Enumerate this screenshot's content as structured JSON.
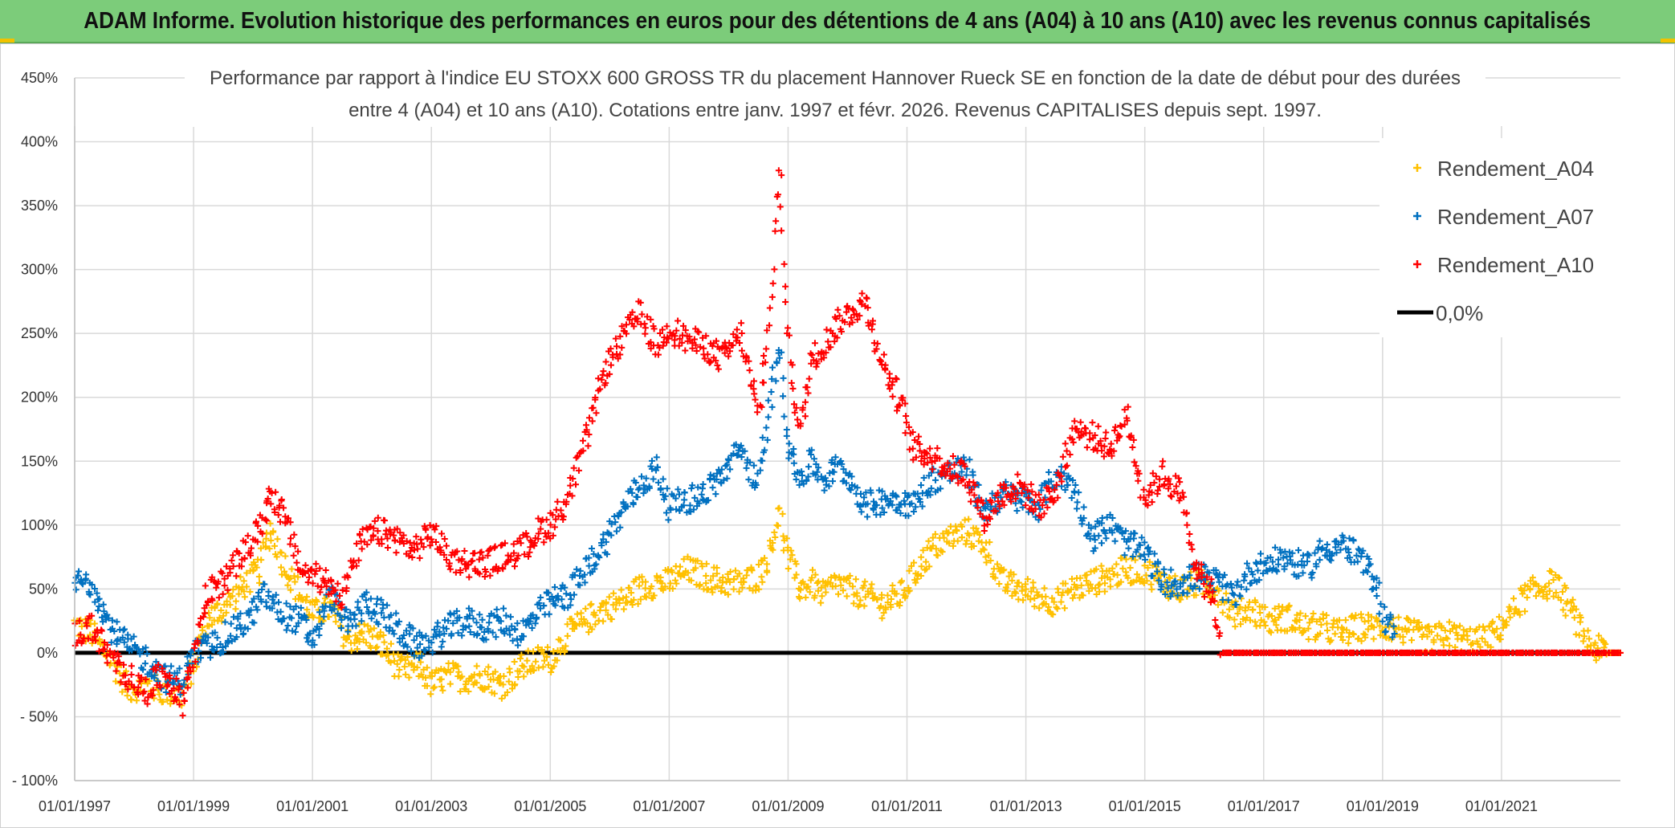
{
  "banner": {
    "title": "ADAM Informe. Evolution historique des performances en euros pour des détentions de 4 ans (A04) à 10 ans (A10) avec les revenus connus capitalisés"
  },
  "colors": {
    "banner_bg": "#7ccc7a",
    "A04": "#ffc000",
    "A07": "#0070c0",
    "A10": "#ff0000",
    "zero_line": "#000000",
    "grid": "#d9d9d9"
  },
  "chart_data": {
    "type": "scatter",
    "title_lines": [
      "Performance par rapport à l'indice EU STOXX 600 GROSS TR  du placement Hannover Rueck SE en fonction de la date de début pour des durées",
      "entre 4 (A04) et 10 ans (A10). Cotations entre janv. 1997 et févr. 2026. Revenus CAPITALISES depuis sept. 1997."
    ],
    "x_unit": "year",
    "xlim": [
      1997.0,
      2023.0
    ],
    "x_ticks": [
      {
        "value": 1997,
        "label": "01/01/1997"
      },
      {
        "value": 1999,
        "label": "01/01/1999"
      },
      {
        "value": 2001,
        "label": "01/01/2001"
      },
      {
        "value": 2003,
        "label": "01/01/2003"
      },
      {
        "value": 2005,
        "label": "01/01/2005"
      },
      {
        "value": 2007,
        "label": "01/01/2007"
      },
      {
        "value": 2009,
        "label": "01/01/2009"
      },
      {
        "value": 2011,
        "label": "01/01/2011"
      },
      {
        "value": 2013,
        "label": "01/01/2013"
      },
      {
        "value": 2015,
        "label": "01/01/2015"
      },
      {
        "value": 2017,
        "label": "01/01/2017"
      },
      {
        "value": 2019,
        "label": "01/01/2019"
      },
      {
        "value": 2021,
        "label": "01/01/2021"
      }
    ],
    "ylim": [
      -100,
      450
    ],
    "y_ticks": [
      {
        "value": 450,
        "label": "450%"
      },
      {
        "value": 400,
        "label": "400%"
      },
      {
        "value": 350,
        "label": "350%"
      },
      {
        "value": 300,
        "label": "300%"
      },
      {
        "value": 250,
        "label": "250%"
      },
      {
        "value": 200,
        "label": "200%"
      },
      {
        "value": 150,
        "label": "150%"
      },
      {
        "value": 100,
        "label": "100%"
      },
      {
        "value": 50,
        "label": "50%"
      },
      {
        "value": 0,
        "label": "0%"
      },
      {
        "value": -50,
        "label": "- 50%"
      },
      {
        "value": -100,
        "label": "- 100%"
      }
    ],
    "grid": true,
    "legend_position": "top-right",
    "legend": [
      {
        "key": "A04",
        "label": "Rendement_A04",
        "kind": "marker"
      },
      {
        "key": "A07",
        "label": "Rendement_A07",
        "kind": "marker"
      },
      {
        "key": "A10",
        "label": "Rendement_A10",
        "kind": "marker"
      },
      {
        "key": "zero",
        "label": "0,0%",
        "kind": "line"
      }
    ],
    "series": [
      {
        "name": "Rendement_A04",
        "key": "A04",
        "points": [
          [
            1997.0,
            22
          ],
          [
            1997.3,
            15
          ],
          [
            1997.6,
            -5
          ],
          [
            1997.9,
            -28
          ],
          [
            1998.2,
            -25
          ],
          [
            1998.5,
            -30
          ],
          [
            1998.8,
            -33
          ],
          [
            1999.0,
            -10
          ],
          [
            1999.2,
            25
          ],
          [
            1999.5,
            35
          ],
          [
            1999.8,
            50
          ],
          [
            2000.1,
            65
          ],
          [
            2000.3,
            98
          ],
          [
            2000.5,
            72
          ],
          [
            2000.8,
            45
          ],
          [
            2001.0,
            30
          ],
          [
            2001.3,
            35
          ],
          [
            2001.6,
            10
          ],
          [
            2001.9,
            15
          ],
          [
            2002.2,
            5
          ],
          [
            2002.5,
            -15
          ],
          [
            2002.8,
            -10
          ],
          [
            2003.0,
            -25
          ],
          [
            2003.3,
            -18
          ],
          [
            2003.6,
            -20
          ],
          [
            2003.9,
            -18
          ],
          [
            2004.2,
            -25
          ],
          [
            2004.5,
            -12
          ],
          [
            2004.8,
            -5
          ],
          [
            2005.0,
            -5
          ],
          [
            2005.3,
            15
          ],
          [
            2005.6,
            25
          ],
          [
            2005.9,
            35
          ],
          [
            2006.2,
            40
          ],
          [
            2006.5,
            50
          ],
          [
            2006.8,
            55
          ],
          [
            2007.0,
            55
          ],
          [
            2007.3,
            65
          ],
          [
            2007.6,
            60
          ],
          [
            2007.9,
            55
          ],
          [
            2008.2,
            55
          ],
          [
            2008.5,
            60
          ],
          [
            2008.7,
            80
          ],
          [
            2008.85,
            110
          ],
          [
            2009.0,
            75
          ],
          [
            2009.2,
            50
          ],
          [
            2009.4,
            55
          ],
          [
            2009.6,
            45
          ],
          [
            2009.8,
            55
          ],
          [
            2010.0,
            50
          ],
          [
            2010.3,
            45
          ],
          [
            2010.6,
            38
          ],
          [
            2010.9,
            45
          ],
          [
            2011.1,
            60
          ],
          [
            2011.4,
            80
          ],
          [
            2011.7,
            90
          ],
          [
            2012.0,
            95
          ],
          [
            2012.3,
            85
          ],
          [
            2012.6,
            55
          ],
          [
            2012.9,
            50
          ],
          [
            2013.2,
            45
          ],
          [
            2013.5,
            40
          ],
          [
            2013.8,
            50
          ],
          [
            2014.1,
            55
          ],
          [
            2014.4,
            60
          ],
          [
            2014.7,
            65
          ],
          [
            2015.0,
            65
          ],
          [
            2015.3,
            55
          ],
          [
            2015.6,
            50
          ],
          [
            2015.9,
            55
          ],
          [
            2016.2,
            50
          ],
          [
            2016.5,
            30
          ],
          [
            2016.8,
            35
          ],
          [
            2017.1,
            25
          ],
          [
            2017.4,
            28
          ],
          [
            2017.7,
            20
          ],
          [
            2018.0,
            20
          ],
          [
            2018.3,
            15
          ],
          [
            2018.6,
            20
          ],
          [
            2018.9,
            20
          ],
          [
            2019.2,
            20
          ],
          [
            2019.5,
            15
          ],
          [
            2019.8,
            10
          ],
          [
            2020.1,
            15
          ],
          [
            2020.4,
            10
          ],
          [
            2020.7,
            10
          ],
          [
            2021.0,
            20
          ],
          [
            2021.3,
            40
          ],
          [
            2021.6,
            50
          ],
          [
            2021.9,
            55
          ],
          [
            2022.2,
            30
          ],
          [
            2022.5,
            5
          ],
          [
            2022.8,
            0
          ],
          [
            2023.0,
            0
          ]
        ]
      },
      {
        "name": "Rendement_A07",
        "key": "A07",
        "points": [
          [
            1997.0,
            55
          ],
          [
            1997.3,
            55
          ],
          [
            1997.6,
            20
          ],
          [
            1997.9,
            5
          ],
          [
            1998.2,
            -5
          ],
          [
            1998.5,
            -20
          ],
          [
            1998.8,
            -22
          ],
          [
            1999.0,
            0
          ],
          [
            1999.3,
            5
          ],
          [
            1999.6,
            15
          ],
          [
            1999.9,
            25
          ],
          [
            2000.2,
            45
          ],
          [
            2000.5,
            30
          ],
          [
            2000.8,
            25
          ],
          [
            2001.0,
            10
          ],
          [
            2001.3,
            45
          ],
          [
            2001.6,
            20
          ],
          [
            2001.9,
            40
          ],
          [
            2002.2,
            30
          ],
          [
            2002.5,
            15
          ],
          [
            2002.8,
            5
          ],
          [
            2003.0,
            10
          ],
          [
            2003.3,
            20
          ],
          [
            2003.6,
            25
          ],
          [
            2003.9,
            20
          ],
          [
            2004.2,
            25
          ],
          [
            2004.5,
            15
          ],
          [
            2004.8,
            30
          ],
          [
            2005.0,
            40
          ],
          [
            2005.3,
            45
          ],
          [
            2005.6,
            65
          ],
          [
            2005.9,
            85
          ],
          [
            2006.2,
            110
          ],
          [
            2006.5,
            130
          ],
          [
            2006.8,
            145
          ],
          [
            2007.0,
            115
          ],
          [
            2007.3,
            120
          ],
          [
            2007.6,
            125
          ],
          [
            2007.9,
            140
          ],
          [
            2008.2,
            160
          ],
          [
            2008.5,
            130
          ],
          [
            2008.7,
            195
          ],
          [
            2008.85,
            245
          ],
          [
            2009.0,
            165
          ],
          [
            2009.2,
            135
          ],
          [
            2009.4,
            150
          ],
          [
            2009.6,
            135
          ],
          [
            2009.8,
            145
          ],
          [
            2010.0,
            140
          ],
          [
            2010.3,
            115
          ],
          [
            2010.6,
            120
          ],
          [
            2010.9,
            120
          ],
          [
            2011.1,
            115
          ],
          [
            2011.4,
            135
          ],
          [
            2011.7,
            140
          ],
          [
            2012.0,
            145
          ],
          [
            2012.3,
            110
          ],
          [
            2012.6,
            125
          ],
          [
            2012.9,
            120
          ],
          [
            2013.2,
            115
          ],
          [
            2013.5,
            140
          ],
          [
            2013.8,
            130
          ],
          [
            2014.1,
            90
          ],
          [
            2014.4,
            100
          ],
          [
            2014.7,
            85
          ],
          [
            2015.0,
            80
          ],
          [
            2015.3,
            55
          ],
          [
            2015.6,
            55
          ],
          [
            2015.9,
            60
          ],
          [
            2016.2,
            55
          ],
          [
            2016.5,
            45
          ],
          [
            2016.8,
            65
          ],
          [
            2017.1,
            70
          ],
          [
            2017.4,
            75
          ],
          [
            2017.7,
            65
          ],
          [
            2018.0,
            80
          ],
          [
            2018.3,
            85
          ],
          [
            2018.6,
            75
          ],
          [
            2018.9,
            55
          ],
          [
            2019.0,
            30
          ],
          [
            2019.2,
            15
          ]
        ]
      },
      {
        "name": "Rendement_A10",
        "key": "A10",
        "points": [
          [
            1997.0,
            15
          ],
          [
            1997.3,
            20
          ],
          [
            1997.6,
            -5
          ],
          [
            1997.9,
            -18
          ],
          [
            1998.2,
            -30
          ],
          [
            1998.5,
            -15
          ],
          [
            1998.8,
            -38
          ],
          [
            1999.0,
            -5
          ],
          [
            1999.2,
            45
          ],
          [
            1999.5,
            55
          ],
          [
            1999.8,
            75
          ],
          [
            2000.1,
            95
          ],
          [
            2000.3,
            125
          ],
          [
            2000.5,
            110
          ],
          [
            2000.8,
            65
          ],
          [
            2001.0,
            60
          ],
          [
            2001.3,
            55
          ],
          [
            2001.5,
            45
          ],
          [
            2001.8,
            85
          ],
          [
            2002.1,
            95
          ],
          [
            2002.4,
            90
          ],
          [
            2002.7,
            80
          ],
          [
            2003.0,
            95
          ],
          [
            2003.3,
            75
          ],
          [
            2003.6,
            70
          ],
          [
            2003.9,
            70
          ],
          [
            2004.2,
            75
          ],
          [
            2004.5,
            80
          ],
          [
            2004.8,
            95
          ],
          [
            2005.0,
            100
          ],
          [
            2005.3,
            120
          ],
          [
            2005.6,
            165
          ],
          [
            2005.9,
            220
          ],
          [
            2006.2,
            245
          ],
          [
            2006.5,
            265
          ],
          [
            2006.8,
            240
          ],
          [
            2007.0,
            255
          ],
          [
            2007.3,
            245
          ],
          [
            2007.6,
            240
          ],
          [
            2007.9,
            230
          ],
          [
            2008.2,
            250
          ],
          [
            2008.5,
            185
          ],
          [
            2008.7,
            265
          ],
          [
            2008.85,
            380
          ],
          [
            2009.0,
            245
          ],
          [
            2009.2,
            170
          ],
          [
            2009.4,
            230
          ],
          [
            2009.6,
            240
          ],
          [
            2009.8,
            255
          ],
          [
            2010.0,
            265
          ],
          [
            2010.3,
            275
          ],
          [
            2010.6,
            225
          ],
          [
            2010.9,
            195
          ],
          [
            2011.1,
            160
          ],
          [
            2011.4,
            155
          ],
          [
            2011.7,
            145
          ],
          [
            2012.0,
            140
          ],
          [
            2012.3,
            105
          ],
          [
            2012.6,
            125
          ],
          [
            2012.9,
            130
          ],
          [
            2013.2,
            115
          ],
          [
            2013.5,
            125
          ],
          [
            2013.8,
            175
          ],
          [
            2014.1,
            170
          ],
          [
            2014.4,
            160
          ],
          [
            2014.7,
            185
          ],
          [
            2015.0,
            120
          ],
          [
            2015.3,
            140
          ],
          [
            2015.6,
            125
          ],
          [
            2015.9,
            60
          ],
          [
            2016.1,
            50
          ],
          [
            2016.3,
            0
          ],
          [
            2017.0,
            0
          ],
          [
            2018.0,
            0
          ],
          [
            2019.0,
            0
          ],
          [
            2020.0,
            0
          ],
          [
            2021.0,
            0
          ],
          [
            2022.0,
            0
          ],
          [
            2023.0,
            0
          ]
        ]
      }
    ],
    "zero_line": {
      "y": 0,
      "label": "0,0%"
    }
  }
}
